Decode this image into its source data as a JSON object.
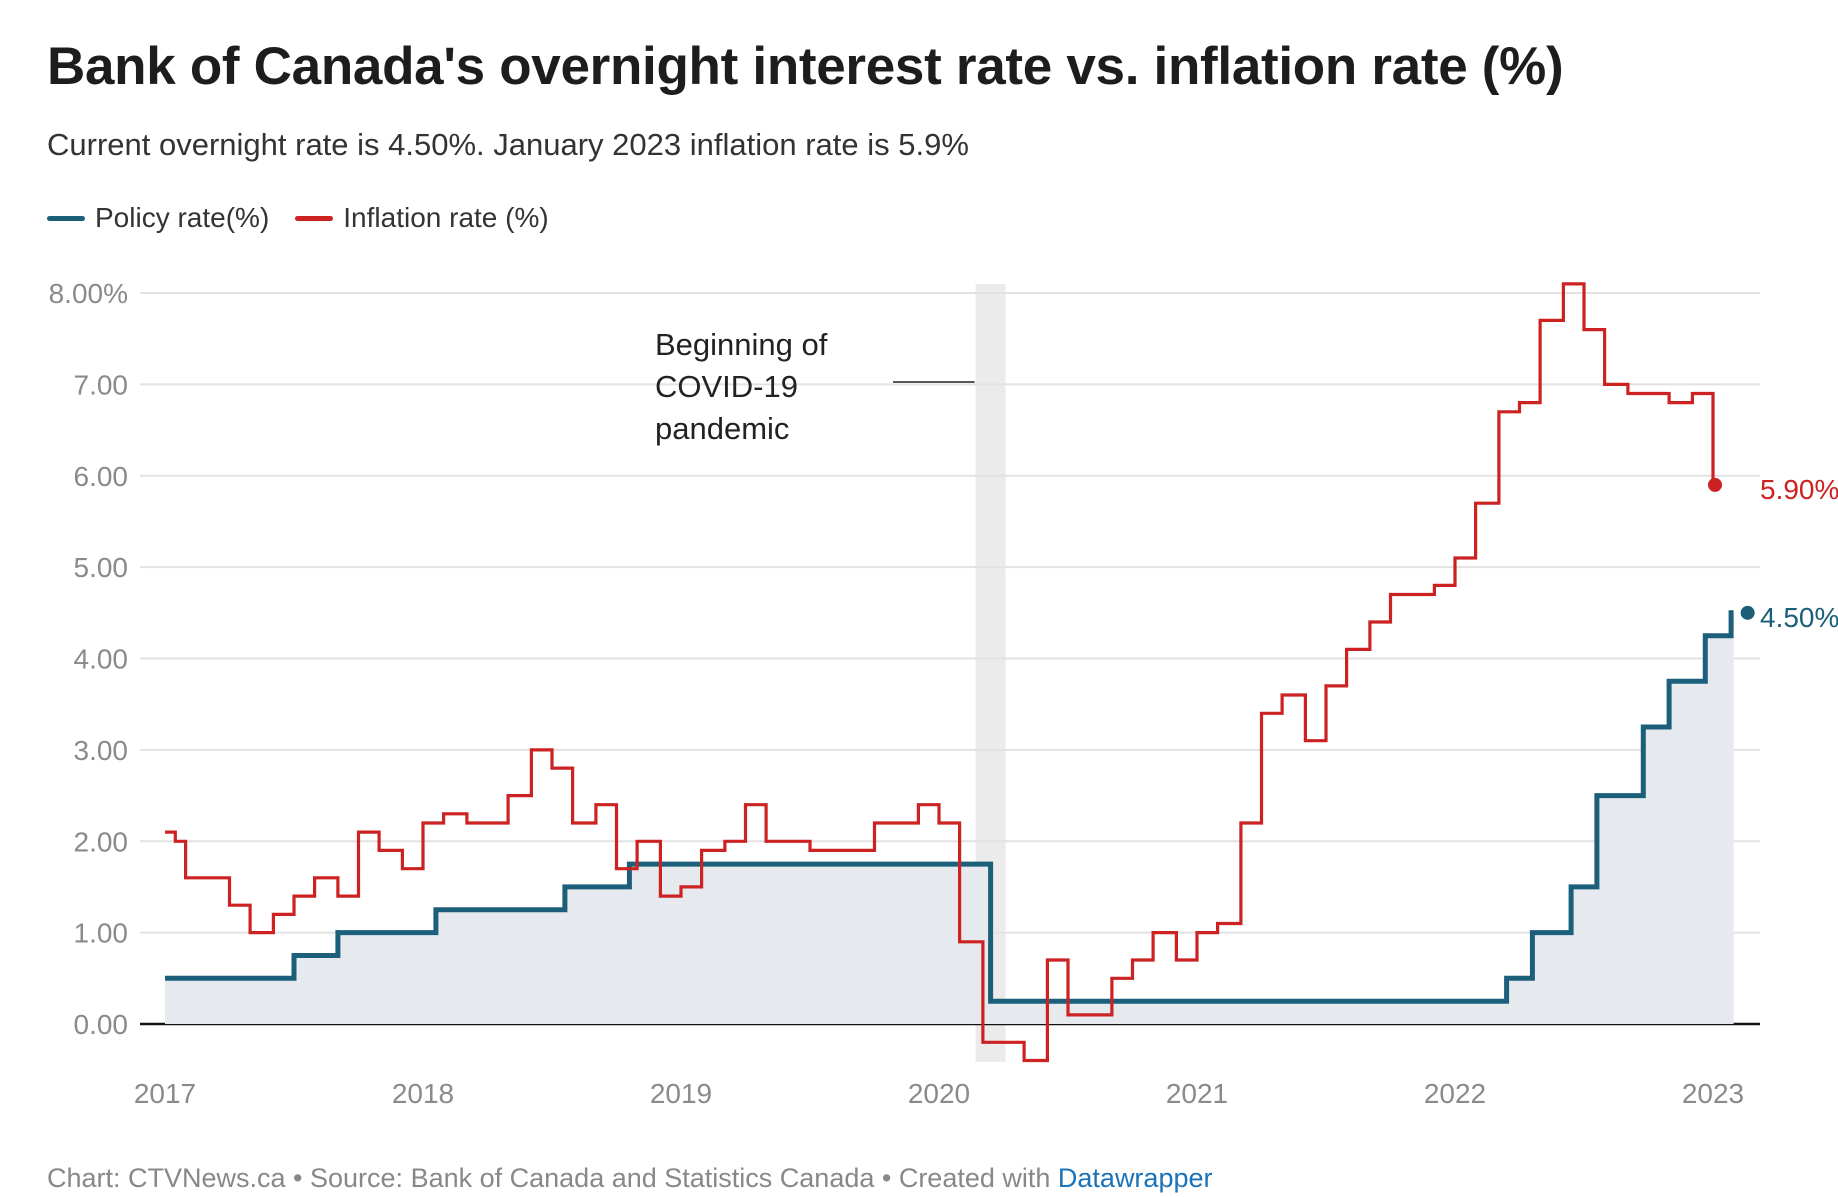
{
  "title": "Bank of Canada's overnight interest rate vs. inflation rate (%)",
  "subtitle": "Current overnight rate is 4.50%. January 2023 inflation rate is 5.9%",
  "legend": [
    {
      "label": "Policy rate(%)",
      "color": "#1b5f7a"
    },
    {
      "label": "Inflation rate (%)",
      "color": "#cc2222"
    }
  ],
  "footer": {
    "prefix": "Chart: CTVNews.ca • Source: Bank of Canada and Statistics Canada • Created with ",
    "link": "Datawrapper"
  },
  "annotation": {
    "lines": [
      "Beginning of",
      "COVID-19",
      "pandemic"
    ],
    "date": 2020.2
  },
  "chart_data": {
    "type": "line",
    "x_range": [
      2017,
      2023.1
    ],
    "ylim": [
      -0.4,
      8.1
    ],
    "y_ticks": [
      {
        "value": 8,
        "label": "8.00%"
      },
      {
        "value": 7,
        "label": "7.00"
      },
      {
        "value": 6,
        "label": "6.00"
      },
      {
        "value": 5,
        "label": "5.00"
      },
      {
        "value": 4,
        "label": "4.00"
      },
      {
        "value": 3,
        "label": "3.00"
      },
      {
        "value": 2,
        "label": "2.00"
      },
      {
        "value": 1,
        "label": "1.00"
      },
      {
        "value": 0,
        "label": "0.00"
      }
    ],
    "x_ticks": [
      {
        "value": 2017,
        "label": "2017"
      },
      {
        "value": 2018,
        "label": "2018"
      },
      {
        "value": 2019,
        "label": "2019"
      },
      {
        "value": 2020,
        "label": "2020"
      },
      {
        "value": 2021,
        "label": "2021"
      },
      {
        "value": 2022,
        "label": "2022"
      },
      {
        "value": 2023,
        "label": "2023"
      }
    ],
    "grid": true,
    "series": [
      {
        "name": "Policy rate(%)",
        "color": "#1b5f7a",
        "step": true,
        "area": true,
        "end_label": "4.50%",
        "points": [
          [
            2017.0,
            0.5
          ],
          [
            2017.5,
            0.75
          ],
          [
            2017.67,
            1.0
          ],
          [
            2018.05,
            1.25
          ],
          [
            2018.55,
            1.5
          ],
          [
            2018.8,
            1.75
          ],
          [
            2020.2,
            0.25
          ],
          [
            2022.2,
            0.5
          ],
          [
            2022.3,
            1.0
          ],
          [
            2022.45,
            1.5
          ],
          [
            2022.55,
            2.5
          ],
          [
            2022.73,
            3.25
          ],
          [
            2022.83,
            3.75
          ],
          [
            2022.97,
            4.25
          ],
          [
            2023.07,
            4.5
          ],
          [
            2023.08,
            4.5
          ]
        ]
      },
      {
        "name": "Inflation rate (%)",
        "color": "#cc2222",
        "step": true,
        "area": false,
        "end_label": "5.90%",
        "points": [
          [
            2017.0,
            2.1
          ],
          [
            2017.04,
            2.0
          ],
          [
            2017.08,
            1.6
          ],
          [
            2017.25,
            1.3
          ],
          [
            2017.33,
            1.0
          ],
          [
            2017.42,
            1.2
          ],
          [
            2017.5,
            1.4
          ],
          [
            2017.58,
            1.6
          ],
          [
            2017.67,
            1.4
          ],
          [
            2017.75,
            2.1
          ],
          [
            2017.83,
            1.9
          ],
          [
            2017.92,
            1.7
          ],
          [
            2018.0,
            2.2
          ],
          [
            2018.08,
            2.3
          ],
          [
            2018.17,
            2.2
          ],
          [
            2018.33,
            2.5
          ],
          [
            2018.42,
            3.0
          ],
          [
            2018.5,
            2.8
          ],
          [
            2018.58,
            2.2
          ],
          [
            2018.67,
            2.4
          ],
          [
            2018.75,
            1.7
          ],
          [
            2018.83,
            2.0
          ],
          [
            2018.92,
            1.4
          ],
          [
            2019.0,
            1.5
          ],
          [
            2019.08,
            1.9
          ],
          [
            2019.17,
            2.0
          ],
          [
            2019.25,
            2.4
          ],
          [
            2019.33,
            2.0
          ],
          [
            2019.5,
            1.9
          ],
          [
            2019.75,
            2.2
          ],
          [
            2019.92,
            2.4
          ],
          [
            2020.0,
            2.2
          ],
          [
            2020.08,
            0.9
          ],
          [
            2020.17,
            -0.2
          ],
          [
            2020.33,
            -0.4
          ],
          [
            2020.42,
            0.7
          ],
          [
            2020.5,
            0.1
          ],
          [
            2020.67,
            0.5
          ],
          [
            2020.75,
            0.7
          ],
          [
            2020.83,
            1.0
          ],
          [
            2020.92,
            0.7
          ],
          [
            2021.0,
            1.0
          ],
          [
            2021.08,
            1.1
          ],
          [
            2021.17,
            2.2
          ],
          [
            2021.25,
            3.4
          ],
          [
            2021.33,
            3.6
          ],
          [
            2021.42,
            3.1
          ],
          [
            2021.5,
            3.7
          ],
          [
            2021.58,
            4.1
          ],
          [
            2021.67,
            4.4
          ],
          [
            2021.75,
            4.7
          ],
          [
            2021.92,
            4.8
          ],
          [
            2022.0,
            5.1
          ],
          [
            2022.08,
            5.7
          ],
          [
            2022.17,
            6.7
          ],
          [
            2022.25,
            6.8
          ],
          [
            2022.33,
            7.7
          ],
          [
            2022.42,
            8.1
          ],
          [
            2022.5,
            7.6
          ],
          [
            2022.58,
            7.0
          ],
          [
            2022.67,
            6.9
          ],
          [
            2022.83,
            6.8
          ],
          [
            2022.92,
            6.9
          ],
          [
            2023.0,
            5.9
          ]
        ]
      }
    ]
  }
}
